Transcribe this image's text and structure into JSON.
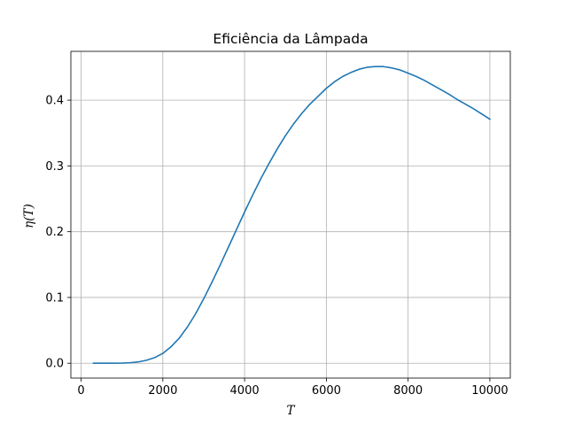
{
  "chart_data": {
    "type": "line",
    "title": "Eficiência da Lâmpada",
    "xlabel": "T",
    "ylabel": "η(T)",
    "xlim": [
      -250,
      10500
    ],
    "ylim": [
      -0.0226,
      0.4742
    ],
    "xticks": [
      0,
      2000,
      4000,
      6000,
      8000,
      10000
    ],
    "xtick_labels": [
      "0",
      "2000",
      "4000",
      "6000",
      "8000",
      "10000"
    ],
    "yticks": [
      0.0,
      0.1,
      0.2,
      0.3,
      0.4
    ],
    "ytick_labels": [
      "0.0",
      "0.1",
      "0.2",
      "0.3",
      "0.4"
    ],
    "grid": true,
    "series": [
      {
        "color": "#1f77b4",
        "x": [
          300,
          500,
          800,
          1000,
          1200,
          1400,
          1600,
          1800,
          2000,
          2200,
          2400,
          2600,
          2800,
          3000,
          3200,
          3400,
          3600,
          3800,
          4000,
          4200,
          4400,
          4600,
          4800,
          5000,
          5200,
          5400,
          5600,
          5800,
          6000,
          6200,
          6400,
          6600,
          6800,
          7000,
          7200,
          7400,
          7600,
          7800,
          8000,
          8200,
          8400,
          8600,
          8800,
          9000,
          9200,
          9400,
          9600,
          9800,
          10000
        ],
        "y": [
          0.0,
          0.0,
          0.0,
          0.0002,
          0.0008,
          0.002,
          0.0045,
          0.0085,
          0.015,
          0.025,
          0.038,
          0.055,
          0.075,
          0.098,
          0.123,
          0.149,
          0.176,
          0.203,
          0.23,
          0.256,
          0.281,
          0.304,
          0.326,
          0.346,
          0.364,
          0.38,
          0.394,
          0.406,
          0.418,
          0.428,
          0.436,
          0.442,
          0.447,
          0.45,
          0.451,
          0.451,
          0.449,
          0.446,
          0.441,
          0.436,
          0.43,
          0.423,
          0.416,
          0.409,
          0.401,
          0.394,
          0.387,
          0.379,
          0.371
        ]
      }
    ]
  }
}
